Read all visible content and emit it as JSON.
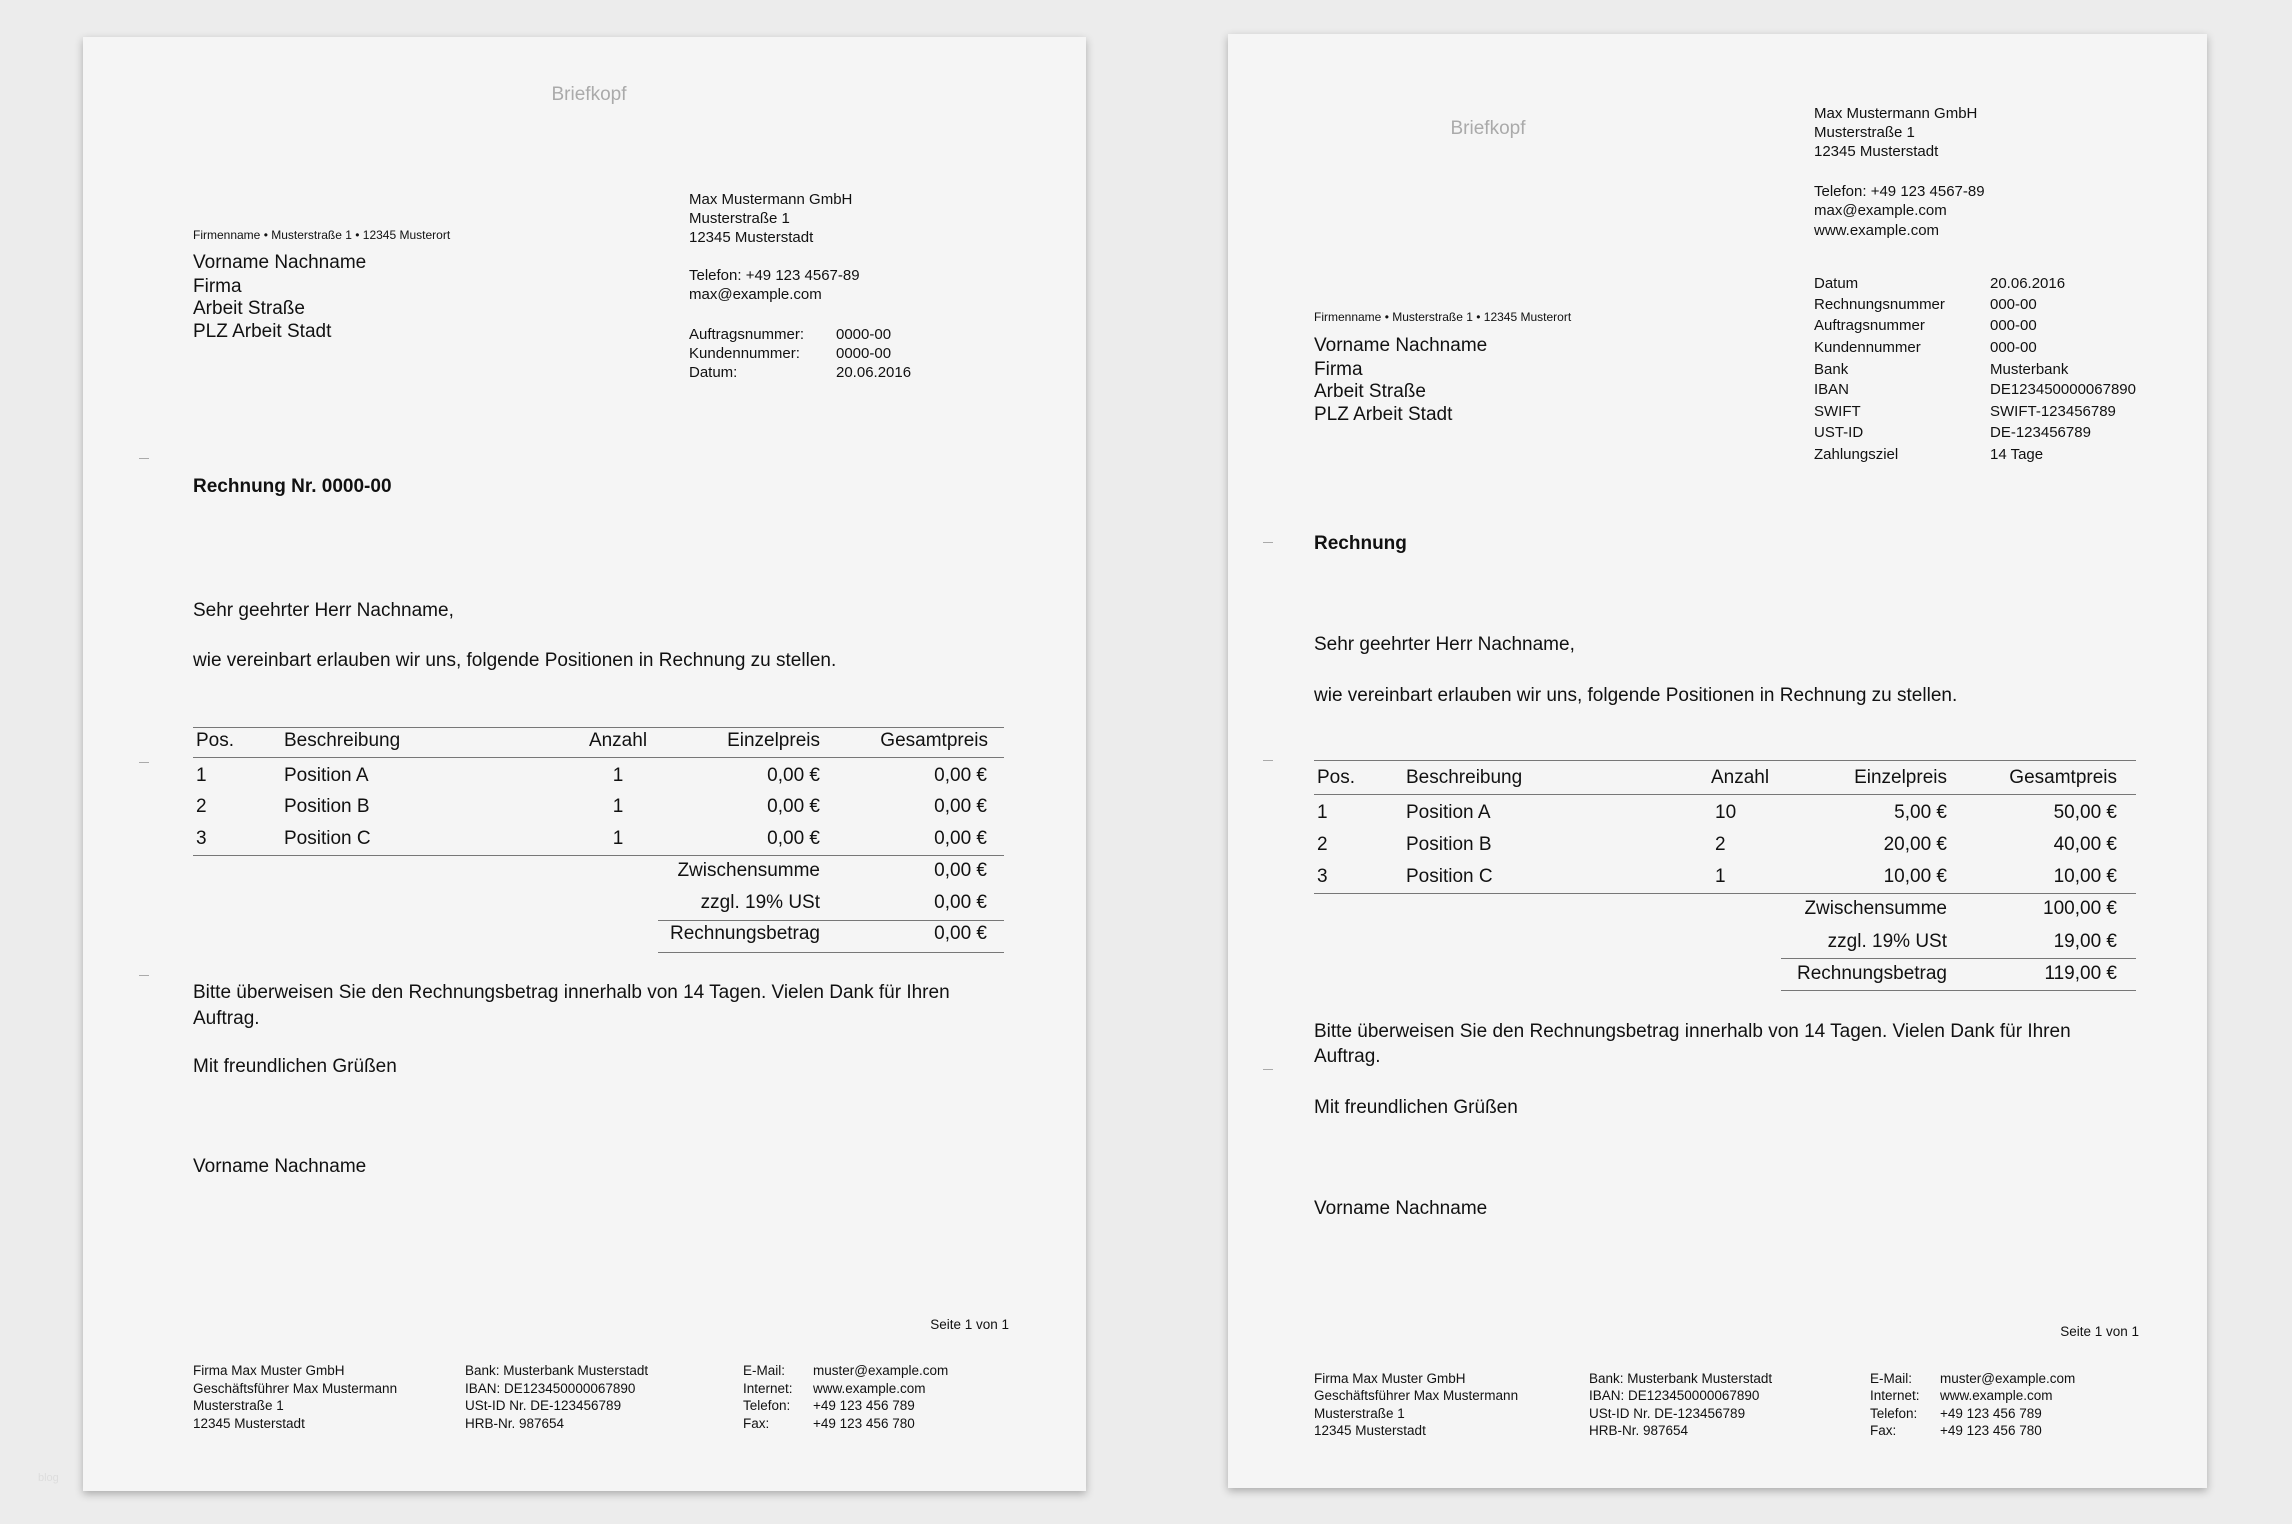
{
  "watermark": "blog",
  "left": {
    "letterhead": "Briefkopf",
    "sender_line": "Firmenname • Musterstraße 1 • 12345 Musterort",
    "recipient": [
      "Vorname Nachname",
      "Firma",
      "Arbeit Straße",
      "PLZ Arbeit Stadt"
    ],
    "company": [
      "Max Mustermann GmbH",
      "Musterstraße 1",
      "12345 Musterstadt"
    ],
    "contact": [
      "Telefon: +49 123 4567-89",
      "max@example.com"
    ],
    "info": [
      {
        "label": "Auftragsnummer:",
        "value": "0000-00"
      },
      {
        "label": "Kundennummer:",
        "value": "0000-00"
      },
      {
        "label": "Datum:",
        "value": "20.06.2016"
      }
    ],
    "title": "Rechnung Nr. 0000-00",
    "salutation": "Sehr geehrter Herr Nachname,",
    "intro": "wie vereinbart erlauben wir uns, folgende Positionen in Rechnung zu stellen.",
    "table": {
      "headers": [
        "Pos.",
        "Beschreibung",
        "Anzahl",
        "Einzelpreis",
        "Gesamtpreis"
      ],
      "rows": [
        [
          "1",
          "Position A",
          "1",
          "0,00 €",
          "0,00 €"
        ],
        [
          "2",
          "Position B",
          "1",
          "0,00 €",
          "0,00 €"
        ],
        [
          "3",
          "Position C",
          "1",
          "0,00 €",
          "0,00 €"
        ]
      ],
      "subtotal": {
        "label": "Zwischensumme",
        "value": "0,00 €"
      },
      "tax": {
        "label": "zzgl. 19% USt",
        "value": "0,00 €"
      },
      "total": {
        "label": "Rechnungsbetrag",
        "value": "0,00 €"
      }
    },
    "closing": [
      "Bitte überweisen Sie den Rechnungsbetrag innerhalb von 14 Tagen. Vielen Dank für Ihren",
      "Auftrag."
    ],
    "regards": "Mit freundlichen Grüßen",
    "signature": "Vorname Nachname",
    "page_number": "Seite 1 von 1",
    "footer": {
      "col1": [
        "Firma Max Muster GmbH",
        "Geschäftsführer Max Mustermann",
        "Musterstraße 1",
        "12345 Musterstadt"
      ],
      "col2": [
        "Bank: Musterbank Musterstadt",
        "IBAN: DE123450000067890",
        "USt-ID Nr. DE-123456789",
        "HRB-Nr. 987654"
      ],
      "col3_labels": [
        "E-Mail:",
        "Internet:",
        "Telefon:",
        "Fax:"
      ],
      "col3_values": [
        "muster@example.com",
        "www.example.com",
        "+49 123 456 789",
        "+49 123 456 780"
      ]
    }
  },
  "right": {
    "letterhead": "Briefkopf",
    "company": [
      "Max Mustermann GmbH",
      "Musterstraße 1",
      "12345 Musterstadt"
    ],
    "contact": [
      "Telefon: +49 123 4567-89",
      "max@example.com",
      "www.example.com"
    ],
    "info": [
      {
        "label": "Datum",
        "value": "20.06.2016"
      },
      {
        "label": "Rechnungsnummer",
        "value": "000-00"
      },
      {
        "label": "Auftragsnummer",
        "value": "000-00"
      },
      {
        "label": "Kundennummer",
        "value": "000-00"
      },
      {
        "label": "Bank",
        "value": "Musterbank"
      },
      {
        "label": "IBAN",
        "value": "DE123450000067890"
      },
      {
        "label": "SWIFT",
        "value": "SWIFT-123456789"
      },
      {
        "label": "UST-ID",
        "value": "DE-123456789"
      },
      {
        "label": "Zahlungsziel",
        "value": "14 Tage"
      }
    ],
    "sender_line": "Firmenname • Musterstraße 1 • 12345 Musterort",
    "recipient": [
      "Vorname Nachname",
      "Firma",
      "Arbeit Straße",
      "PLZ Arbeit Stadt"
    ],
    "title": "Rechnung",
    "salutation": "Sehr geehrter Herr Nachname,",
    "intro": "wie vereinbart erlauben wir uns, folgende Positionen in Rechnung zu stellen.",
    "table": {
      "headers": [
        "Pos.",
        "Beschreibung",
        "Anzahl",
        "Einzelpreis",
        "Gesamtpreis"
      ],
      "rows": [
        [
          "1",
          "Position A",
          "10",
          "5,00 €",
          "50,00 €"
        ],
        [
          "2",
          "Position B",
          "2",
          "20,00 €",
          "40,00 €"
        ],
        [
          "3",
          "Position C",
          "1",
          "10,00 €",
          "10,00 €"
        ]
      ],
      "subtotal": {
        "label": "Zwischensumme",
        "value": "100,00 €"
      },
      "tax": {
        "label": "zzgl. 19% USt",
        "value": "19,00 €"
      },
      "total": {
        "label": "Rechnungsbetrag",
        "value": "119,00 €"
      }
    },
    "closing": [
      "Bitte überweisen Sie den Rechnungsbetrag innerhalb von 14 Tagen. Vielen Dank für Ihren",
      "Auftrag."
    ],
    "regards": "Mit freundlichen Grüßen",
    "signature": "Vorname Nachname",
    "page_number": "Seite 1 von 1",
    "footer": {
      "col1": [
        "Firma Max Muster GmbH",
        "Geschäftsführer Max Mustermann",
        "Musterstraße 1",
        "12345 Musterstadt"
      ],
      "col2": [
        "Bank: Musterbank Musterstadt",
        "IBAN: DE123450000067890",
        "USt-ID Nr. DE-123456789",
        "HRB-Nr. 987654"
      ],
      "col3_labels": [
        "E-Mail:",
        "Internet:",
        "Telefon:",
        "Fax:"
      ],
      "col3_values": [
        "muster@example.com",
        "www.example.com",
        "+49 123 456 789",
        "+49 123 456 780"
      ]
    }
  }
}
